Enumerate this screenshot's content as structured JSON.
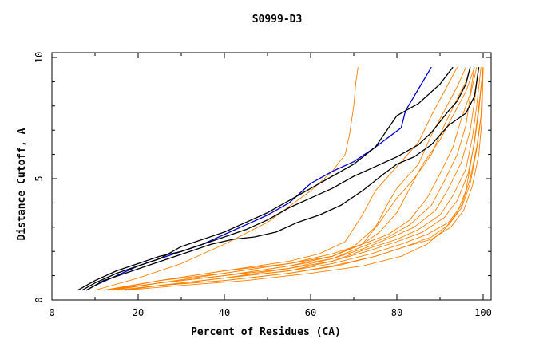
{
  "chart_data": {
    "type": "line",
    "title": "S0999-D3",
    "xlabel": "Percent of Residues (CA)",
    "ylabel": "Distance Cutoff, A",
    "xlim": [
      0,
      100
    ],
    "ylim": [
      0,
      10
    ],
    "xticks": [
      "0",
      "20",
      "40",
      "60",
      "80",
      "100"
    ],
    "yticks": [
      "0",
      "5",
      "10"
    ],
    "grid": false,
    "colors": {
      "blue": "#0000cc",
      "black": "#000000",
      "orange": "#ff8000"
    },
    "series": [
      {
        "color": "#0000cc",
        "x": [
          8,
          10,
          15,
          20,
          25,
          30,
          35,
          40,
          45,
          50,
          55,
          60,
          65,
          70,
          75,
          81,
          82,
          85,
          88
        ],
        "y": [
          0.4,
          0.6,
          1.0,
          1.4,
          1.7,
          2.0,
          2.3,
          2.7,
          3.1,
          3.5,
          4.0,
          4.8,
          5.3,
          5.7,
          6.3,
          7.1,
          7.8,
          8.7,
          9.6
        ]
      },
      {
        "color": "#000000",
        "x": [
          7,
          10,
          15,
          20,
          25,
          30,
          35,
          40,
          45,
          50,
          55,
          60,
          65,
          70,
          75,
          80,
          85,
          90,
          93
        ],
        "y": [
          0.4,
          0.7,
          1.1,
          1.4,
          1.7,
          2.2,
          2.5,
          2.8,
          3.2,
          3.6,
          4.1,
          4.6,
          5.1,
          5.6,
          6.3,
          7.6,
          8.1,
          8.9,
          9.6
        ]
      },
      {
        "color": "#000000",
        "x": [
          6,
          10,
          15,
          20,
          25,
          30,
          35,
          40,
          45,
          50,
          55,
          60,
          65,
          70,
          75,
          80,
          85,
          88,
          92,
          94,
          96,
          97
        ],
        "y": [
          0.4,
          0.8,
          1.2,
          1.5,
          1.8,
          2.0,
          2.3,
          2.6,
          2.9,
          3.3,
          3.8,
          4.2,
          4.6,
          5.1,
          5.5,
          5.9,
          6.4,
          6.9,
          7.8,
          8.2,
          8.9,
          9.6
        ]
      },
      {
        "color": "#000000",
        "x": [
          8,
          12,
          17,
          22,
          27,
          32,
          37,
          42,
          47,
          52,
          57,
          62,
          67,
          72,
          77,
          80,
          84,
          88,
          92,
          96,
          98,
          99
        ],
        "y": [
          0.4,
          0.8,
          1.1,
          1.4,
          1.7,
          2.0,
          2.3,
          2.5,
          2.6,
          2.8,
          3.2,
          3.5,
          3.9,
          4.5,
          5.2,
          5.6,
          5.9,
          6.4,
          7.2,
          7.7,
          8.4,
          9.6
        ]
      },
      {
        "color": "#ff8000",
        "x": [
          10,
          20,
          30,
          40,
          50,
          60,
          65,
          68,
          69,
          70,
          70.5,
          71
        ],
        "y": [
          0.4,
          0.9,
          1.5,
          2.3,
          3.2,
          4.5,
          5.3,
          6.0,
          6.8,
          8.0,
          9.0,
          9.6
        ]
      },
      {
        "color": "#ff8000",
        "x": [
          12,
          25,
          40,
          55,
          62,
          68,
          72,
          75,
          80,
          85,
          88,
          91,
          94
        ],
        "y": [
          0.4,
          0.8,
          1.2,
          1.6,
          1.9,
          2.4,
          3.5,
          4.5,
          5.5,
          6.5,
          7.6,
          8.6,
          9.6
        ]
      },
      {
        "color": "#ff8000",
        "x": [
          12,
          25,
          40,
          55,
          65,
          70,
          75,
          78,
          80,
          82,
          85,
          88,
          91,
          94,
          96
        ],
        "y": [
          0.4,
          0.8,
          1.2,
          1.5,
          1.8,
          2.2,
          3.0,
          4.0,
          4.6,
          5.0,
          5.6,
          6.8,
          7.8,
          8.8,
          9.6
        ]
      },
      {
        "color": "#ff8000",
        "x": [
          13,
          25,
          40,
          55,
          65,
          72,
          76,
          80,
          84,
          88,
          91,
          94,
          96,
          97
        ],
        "y": [
          0.4,
          0.8,
          1.1,
          1.5,
          1.8,
          2.3,
          3.2,
          4.2,
          5.0,
          6.0,
          7.2,
          8.3,
          9.0,
          9.6
        ]
      },
      {
        "color": "#ff8000",
        "x": [
          12,
          25,
          40,
          55,
          65,
          72,
          76,
          80,
          83,
          86,
          90,
          93,
          96,
          98
        ],
        "y": [
          0.4,
          0.7,
          1.1,
          1.5,
          1.9,
          2.3,
          2.8,
          3.6,
          4.6,
          5.6,
          6.6,
          7.6,
          8.6,
          9.6
        ]
      },
      {
        "color": "#ff8000",
        "x": [
          13,
          25,
          40,
          55,
          65,
          72,
          78,
          83,
          87,
          90,
          93,
          95,
          97,
          98
        ],
        "y": [
          0.4,
          0.7,
          1.0,
          1.4,
          1.8,
          2.3,
          2.7,
          3.3,
          4.2,
          5.2,
          6.3,
          7.5,
          8.5,
          9.6
        ]
      },
      {
        "color": "#ff8000",
        "x": [
          14,
          25,
          40,
          55,
          65,
          72,
          78,
          83,
          88,
          91,
          94,
          96,
          97,
          98.5
        ],
        "y": [
          0.4,
          0.7,
          1.0,
          1.4,
          1.7,
          2.2,
          2.6,
          3.1,
          3.9,
          4.9,
          6.0,
          7.2,
          8.4,
          9.6
        ]
      },
      {
        "color": "#ff8000",
        "x": [
          14,
          25,
          40,
          55,
          65,
          72,
          79,
          84,
          89,
          92,
          95,
          97,
          98,
          99
        ],
        "y": [
          0.4,
          0.7,
          1.0,
          1.3,
          1.7,
          2.1,
          2.6,
          3.0,
          3.7,
          4.6,
          5.7,
          7.0,
          8.2,
          9.6
        ]
      },
      {
        "color": "#ff8000",
        "x": [
          15,
          25,
          40,
          55,
          65,
          73,
          80,
          85,
          90,
          93,
          96,
          97.5,
          98.5,
          99.5
        ],
        "y": [
          0.4,
          0.6,
          0.9,
          1.3,
          1.6,
          2.1,
          2.5,
          2.9,
          3.5,
          4.3,
          5.4,
          6.7,
          8.0,
          9.6
        ]
      },
      {
        "color": "#ff8000",
        "x": [
          15,
          25,
          40,
          55,
          65,
          73,
          80,
          86,
          91,
          94,
          96.5,
          98,
          99,
          100
        ],
        "y": [
          0.4,
          0.6,
          0.9,
          1.2,
          1.6,
          2.0,
          2.4,
          2.8,
          3.4,
          4.1,
          5.2,
          6.5,
          7.8,
          9.6
        ]
      },
      {
        "color": "#ff8000",
        "x": [
          16,
          25,
          40,
          55,
          65,
          74,
          81,
          87,
          92,
          95,
          97,
          98.5,
          99.5,
          100
        ],
        "y": [
          0.4,
          0.6,
          0.9,
          1.2,
          1.5,
          1.9,
          2.3,
          2.7,
          3.2,
          3.9,
          5.0,
          6.3,
          7.6,
          9.6
        ]
      },
      {
        "color": "#ff8000",
        "x": [
          16,
          25,
          40,
          55,
          65,
          75,
          82,
          88,
          92,
          95,
          97,
          98.5,
          99.5,
          100
        ],
        "y": [
          0.4,
          0.6,
          0.8,
          1.1,
          1.4,
          1.8,
          2.2,
          2.6,
          3.1,
          3.8,
          4.8,
          6.2,
          7.5,
          9.6
        ]
      },
      {
        "color": "#ff8000",
        "x": [
          17,
          25,
          40,
          55,
          66,
          75,
          82,
          88,
          92.5,
          95.5,
          97.5,
          99,
          99.7,
          100
        ],
        "y": [
          0.4,
          0.6,
          0.8,
          1.1,
          1.4,
          1.8,
          2.2,
          2.5,
          3.0,
          3.7,
          4.7,
          6.0,
          7.4,
          9.6
        ]
      },
      {
        "color": "#ff8000",
        "x": [
          17,
          30,
          45,
          60,
          72,
          81,
          87,
          91,
          94,
          96,
          97,
          98,
          99,
          100
        ],
        "y": [
          0.4,
          0.6,
          0.8,
          1.1,
          1.4,
          1.8,
          2.3,
          2.9,
          3.6,
          4.5,
          5.5,
          6.6,
          8.0,
          9.6
        ]
      }
    ]
  }
}
